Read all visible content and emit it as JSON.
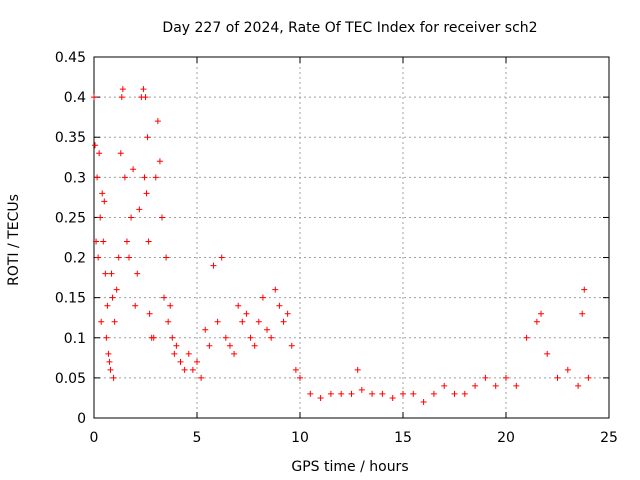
{
  "chart_data": {
    "type": "scatter",
    "title": "Day 227 of 2024, Rate Of TEC Index for receiver sch2",
    "xlabel": "GPS time / hours",
    "ylabel": "ROTI / TECUs",
    "xlim": [
      0,
      25
    ],
    "ylim": [
      0,
      0.45
    ],
    "x_ticks": [
      0,
      5,
      10,
      15,
      20,
      25
    ],
    "x_tick_labels": [
      "0",
      "5",
      "10",
      "15",
      "20",
      "25"
    ],
    "y_ticks": [
      0,
      0.05,
      0.1,
      0.15,
      0.2,
      0.25,
      0.3,
      0.35,
      0.4,
      0.45
    ],
    "y_tick_labels": [
      "0",
      "0.05",
      "0.1",
      "0.15",
      "0.2",
      "0.25",
      "0.3",
      "0.35",
      "0.4",
      "0.45"
    ],
    "grid": true,
    "marker": "plus",
    "color": "#ff0000",
    "series": [
      {
        "x": [
          0.0,
          0.05,
          0.1,
          0.15,
          0.2,
          0.25,
          0.3,
          0.35,
          0.4,
          0.45,
          0.5,
          0.55,
          0.6,
          0.65,
          0.7,
          0.75,
          0.8,
          0.85,
          0.9,
          0.95,
          1.0,
          1.1,
          1.2,
          1.3,
          1.35,
          1.4,
          1.5,
          1.6,
          1.7,
          1.8,
          1.9,
          2.0,
          2.1,
          2.2,
          2.3,
          2.4,
          2.45,
          2.5,
          2.55,
          2.6,
          2.65,
          2.7,
          2.8,
          2.9,
          3.0,
          3.1,
          3.2,
          3.3,
          3.4,
          3.5,
          3.6,
          3.7,
          3.8,
          3.9,
          4.0,
          4.2,
          4.4,
          4.6,
          4.8,
          5.0,
          5.2,
          5.4,
          5.6,
          5.8,
          6.0,
          6.2,
          6.4,
          6.6,
          6.8,
          7.0,
          7.2,
          7.4,
          7.6,
          7.8,
          8.0,
          8.2,
          8.4,
          8.6,
          8.8,
          9.0,
          9.2,
          9.4,
          9.6,
          9.8,
          10.0,
          10.5,
          11.0,
          11.5,
          12.0,
          12.5,
          12.8,
          13.0,
          13.5,
          14.0,
          14.5,
          15.0,
          15.5,
          16.0,
          16.5,
          17.0,
          17.5,
          18.0,
          18.5,
          19.0,
          19.5,
          20.0,
          20.5,
          21.0,
          21.5,
          21.7,
          22.0,
          22.5,
          23.0,
          23.5,
          23.7,
          23.8,
          24.0
        ],
        "y": [
          0.4,
          0.34,
          0.22,
          0.3,
          0.2,
          0.33,
          0.25,
          0.12,
          0.28,
          0.22,
          0.27,
          0.18,
          0.1,
          0.14,
          0.08,
          0.07,
          0.06,
          0.18,
          0.15,
          0.05,
          0.12,
          0.16,
          0.2,
          0.33,
          0.4,
          0.41,
          0.3,
          0.22,
          0.2,
          0.25,
          0.31,
          0.14,
          0.18,
          0.26,
          0.4,
          0.41,
          0.3,
          0.4,
          0.28,
          0.35,
          0.22,
          0.13,
          0.1,
          0.1,
          0.3,
          0.37,
          0.32,
          0.25,
          0.15,
          0.2,
          0.12,
          0.14,
          0.1,
          0.08,
          0.09,
          0.07,
          0.06,
          0.08,
          0.06,
          0.07,
          0.05,
          0.11,
          0.09,
          0.19,
          0.12,
          0.2,
          0.1,
          0.09,
          0.08,
          0.14,
          0.12,
          0.13,
          0.1,
          0.09,
          0.12,
          0.15,
          0.11,
          0.1,
          0.16,
          0.14,
          0.12,
          0.13,
          0.09,
          0.06,
          0.05,
          0.03,
          0.025,
          0.03,
          0.03,
          0.03,
          0.06,
          0.035,
          0.03,
          0.03,
          0.025,
          0.03,
          0.03,
          0.02,
          0.03,
          0.04,
          0.03,
          0.03,
          0.04,
          0.05,
          0.04,
          0.05,
          0.04,
          0.1,
          0.12,
          0.13,
          0.08,
          0.05,
          0.06,
          0.04,
          0.13,
          0.16,
          0.05
        ]
      }
    ]
  }
}
